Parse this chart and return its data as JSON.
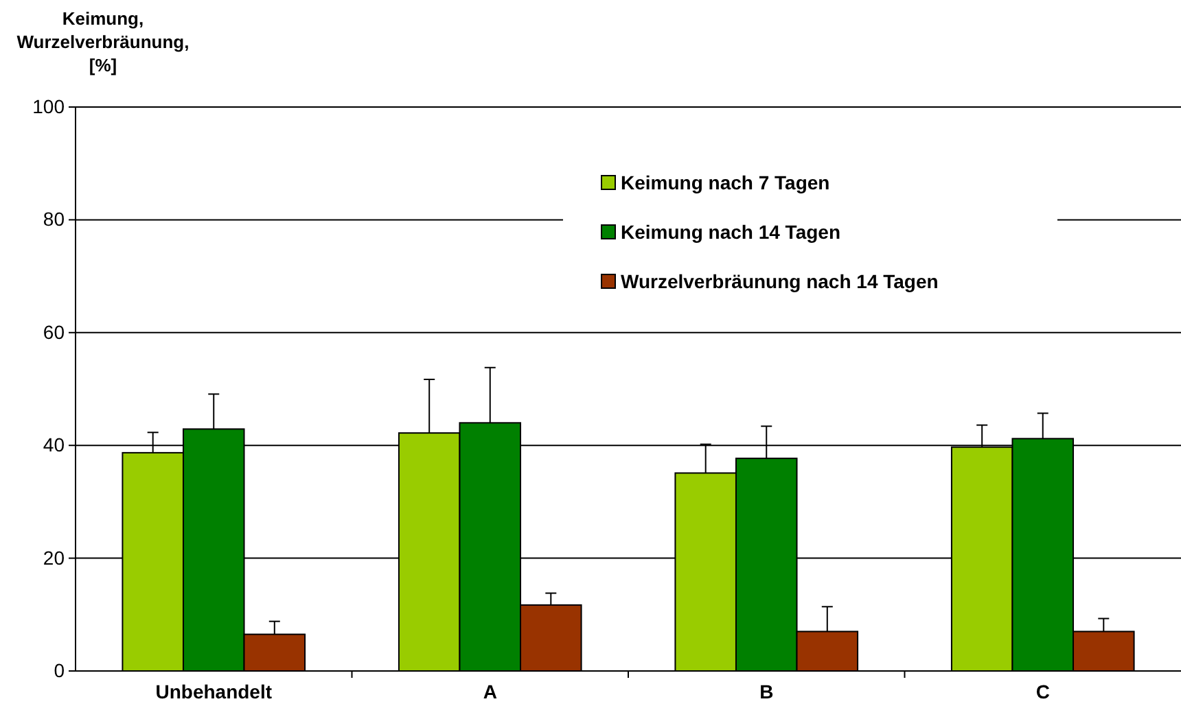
{
  "chart_data": {
    "type": "bar",
    "ylabel": "Keimung, Wurzelverbräunung, [%]",
    "categories": [
      "Unbehandelt",
      "A",
      "B",
      "C"
    ],
    "series": [
      {
        "name": "Keimung nach 7 Tagen",
        "color": "#99cc00",
        "values": [
          38.7,
          42.2,
          35.1,
          39.7
        ],
        "errors": [
          [
            38.7,
            42.3
          ],
          [
            42.2,
            51.7
          ],
          [
            35.1,
            40.2
          ],
          [
            39.7,
            43.6
          ]
        ]
      },
      {
        "name": "Keimung nach 14 Tagen",
        "color": "#008000",
        "values": [
          42.9,
          44.0,
          37.7,
          41.2
        ],
        "errors": [
          [
            42.9,
            49.1
          ],
          [
            44.0,
            53.8
          ],
          [
            37.7,
            43.4
          ],
          [
            41.2,
            45.7
          ]
        ]
      },
      {
        "name": "Wurzelverbräunung nach 14 Tagen",
        "color": "#993300",
        "values": [
          6.5,
          11.7,
          7.0,
          7.0
        ],
        "errors": [
          [
            6.5,
            8.8
          ],
          [
            11.7,
            13.8
          ],
          [
            7.0,
            11.4
          ],
          [
            7.0,
            9.3
          ]
        ]
      }
    ],
    "ylim": [
      0,
      100
    ],
    "yticks": [
      0,
      20,
      40,
      60,
      80,
      100
    ],
    "grid": "y",
    "legend": "top right"
  }
}
